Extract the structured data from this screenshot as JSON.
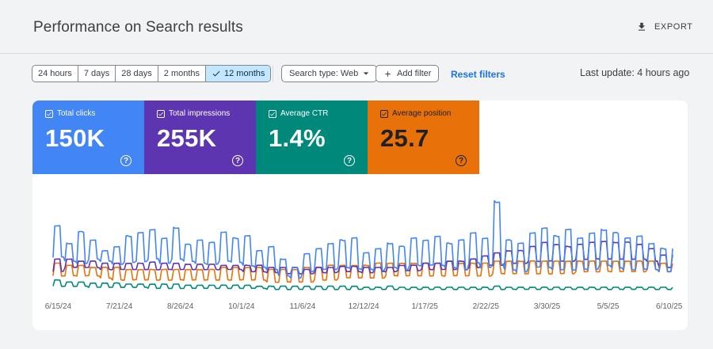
{
  "header": {
    "title": "Performance on Search results",
    "export_label": "EXPORT"
  },
  "filters": {
    "ranges": [
      {
        "label": "24 hours",
        "active": false
      },
      {
        "label": "7 days",
        "active": false
      },
      {
        "label": "28 days",
        "active": false
      },
      {
        "label": "2 months",
        "active": false
      },
      {
        "label": "12 months",
        "active": true
      }
    ],
    "search_type": "Search type: Web",
    "add_filter": "Add filter",
    "reset": "Reset filters",
    "last_update": "Last update: 4 hours ago"
  },
  "metrics": [
    {
      "label": "Total clicks",
      "value": "150K",
      "color": "#4285f4",
      "text_color": "#ffffff",
      "checked": true
    },
    {
      "label": "Total impressions",
      "value": "255K",
      "color": "#5e35b1",
      "text_color": "#ffffff",
      "checked": true
    },
    {
      "label": "Average CTR",
      "value": "1.4%",
      "color": "#00897b",
      "text_color": "#ffffff",
      "checked": true
    },
    {
      "label": "Average position",
      "value": "25.7",
      "color": "#e8710a",
      "text_color": "#202124",
      "checked": true
    }
  ],
  "chart_data": {
    "type": "line",
    "x_tick_labels": [
      "6/15/24",
      "7/21/24",
      "8/26/24",
      "10/1/24",
      "11/6/24",
      "12/12/24",
      "1/17/25",
      "2/22/25",
      "3/30/25",
      "5/5/25",
      "6/10/25"
    ],
    "x_range": [
      "6/12/24",
      "6/12/25"
    ],
    "axes_visible": false,
    "grid": false,
    "series": [
      {
        "name": "Total clicks",
        "color": "#4285f4",
        "weekly_highs": [
          0.62,
          0.45,
          0.56,
          0.48,
          0.38,
          0.42,
          0.52,
          0.55,
          0.58,
          0.5,
          0.6,
          0.44,
          0.48,
          0.46,
          0.56,
          0.5,
          0.52,
          0.38,
          0.42,
          0.3,
          0.22,
          0.35,
          0.4,
          0.45,
          0.48,
          0.5,
          0.36,
          0.4,
          0.45,
          0.42,
          0.5,
          0.48,
          0.52,
          0.45,
          0.48,
          0.55,
          0.5,
          0.85,
          0.48,
          0.45,
          0.55,
          0.6,
          0.52,
          0.58,
          0.5,
          0.55,
          0.58,
          0.55,
          0.5,
          0.52,
          0.45,
          0.4
        ],
        "weekly_lows": [
          0.32,
          0.28,
          0.26,
          0.3,
          0.28,
          0.25,
          0.27,
          0.28,
          0.3,
          0.26,
          0.3,
          0.28,
          0.26,
          0.25,
          0.28,
          0.27,
          0.24,
          0.22,
          0.2,
          0.14,
          0.12,
          0.18,
          0.2,
          0.2,
          0.22,
          0.21,
          0.2,
          0.19,
          0.22,
          0.2,
          0.24,
          0.24,
          0.24,
          0.22,
          0.2,
          0.26,
          0.22,
          0.25,
          0.2,
          0.18,
          0.22,
          0.22,
          0.2,
          0.2,
          0.2,
          0.2,
          0.24,
          0.22,
          0.2,
          0.2,
          0.2,
          0.18
        ]
      },
      {
        "name": "Total impressions",
        "color": "#5e35b1",
        "weekly_highs": [
          0.3,
          0.3,
          0.28,
          0.28,
          0.26,
          0.26,
          0.26,
          0.26,
          0.27,
          0.26,
          0.26,
          0.25,
          0.25,
          0.25,
          0.24,
          0.24,
          0.24,
          0.24,
          0.22,
          0.22,
          0.22,
          0.2,
          0.22,
          0.22,
          0.23,
          0.23,
          0.22,
          0.22,
          0.22,
          0.24,
          0.24,
          0.26,
          0.26,
          0.28,
          0.28,
          0.3,
          0.33,
          0.36,
          0.38,
          0.38,
          0.42,
          0.46,
          0.44,
          0.42,
          0.44,
          0.46,
          0.47,
          0.46,
          0.46,
          0.44,
          0.4,
          0.34
        ],
        "weekly_lows": [
          0.18,
          0.22,
          0.22,
          0.22,
          0.2,
          0.2,
          0.2,
          0.2,
          0.2,
          0.2,
          0.2,
          0.2,
          0.2,
          0.2,
          0.2,
          0.2,
          0.18,
          0.18,
          0.17,
          0.16,
          0.16,
          0.16,
          0.17,
          0.17,
          0.18,
          0.18,
          0.17,
          0.18,
          0.18,
          0.19,
          0.19,
          0.2,
          0.2,
          0.2,
          0.2,
          0.22,
          0.24,
          0.24,
          0.26,
          0.26,
          0.28,
          0.28,
          0.28,
          0.28,
          0.3,
          0.3,
          0.3,
          0.3,
          0.3,
          0.3,
          0.28,
          0.22
        ]
      },
      {
        "name": "Average position",
        "color": "#e8710a",
        "weekly_highs": [
          0.26,
          0.24,
          0.24,
          0.22,
          0.22,
          0.22,
          0.2,
          0.2,
          0.2,
          0.2,
          0.2,
          0.2,
          0.2,
          0.2,
          0.22,
          0.22,
          0.22,
          0.22,
          0.2,
          0.2,
          0.2,
          0.22,
          0.22,
          0.24,
          0.24,
          0.24,
          0.24,
          0.26,
          0.26,
          0.26,
          0.26,
          0.26,
          0.26,
          0.28,
          0.26,
          0.26,
          0.26,
          0.28,
          0.28,
          0.28,
          0.28,
          0.28,
          0.28,
          0.28,
          0.28,
          0.28,
          0.28,
          0.28,
          0.28,
          0.28,
          0.28,
          0.26
        ],
        "weekly_lows": [
          0.14,
          0.14,
          0.14,
          0.14,
          0.12,
          0.1,
          0.1,
          0.1,
          0.1,
          0.1,
          0.1,
          0.1,
          0.1,
          0.1,
          0.1,
          0.1,
          0.1,
          0.1,
          0.08,
          0.08,
          0.08,
          0.08,
          0.1,
          0.1,
          0.12,
          0.12,
          0.12,
          0.12,
          0.14,
          0.14,
          0.14,
          0.14,
          0.14,
          0.14,
          0.14,
          0.14,
          0.14,
          0.16,
          0.16,
          0.16,
          0.16,
          0.16,
          0.16,
          0.16,
          0.18,
          0.18,
          0.18,
          0.18,
          0.18,
          0.18,
          0.2,
          0.18
        ]
      },
      {
        "name": "Average CTR",
        "color": "#00897b",
        "weekly_highs": [
          0.1,
          0.08,
          0.08,
          0.07,
          0.07,
          0.07,
          0.06,
          0.06,
          0.06,
          0.06,
          0.06,
          0.05,
          0.05,
          0.05,
          0.05,
          0.05,
          0.05,
          0.04,
          0.04,
          0.04,
          0.04,
          0.04,
          0.04,
          0.04,
          0.04,
          0.04,
          0.03,
          0.03,
          0.04,
          0.03,
          0.03,
          0.03,
          0.03,
          0.03,
          0.03,
          0.03,
          0.03,
          0.04,
          0.03,
          0.03,
          0.03,
          0.03,
          0.03,
          0.03,
          0.03,
          0.03,
          0.03,
          0.03,
          0.03,
          0.03,
          0.03,
          0.03
        ],
        "weekly_lows": [
          0.04,
          0.04,
          0.04,
          0.03,
          0.03,
          0.03,
          0.03,
          0.03,
          0.02,
          0.02,
          0.02,
          0.02,
          0.02,
          0.02,
          0.02,
          0.02,
          0.02,
          0.02,
          0.01,
          0.01,
          0.01,
          0.01,
          0.01,
          0.01,
          0.01,
          0.01,
          0.01,
          0.01,
          0.01,
          0.01,
          0.01,
          0.01,
          0.01,
          0.01,
          0.01,
          0.01,
          0.01,
          0.01,
          0.01,
          0.01,
          0.01,
          0.01,
          0.01,
          0.01,
          0.01,
          0.01,
          0.01,
          0.01,
          0.01,
          0.01,
          0.01,
          0.01
        ]
      }
    ]
  }
}
